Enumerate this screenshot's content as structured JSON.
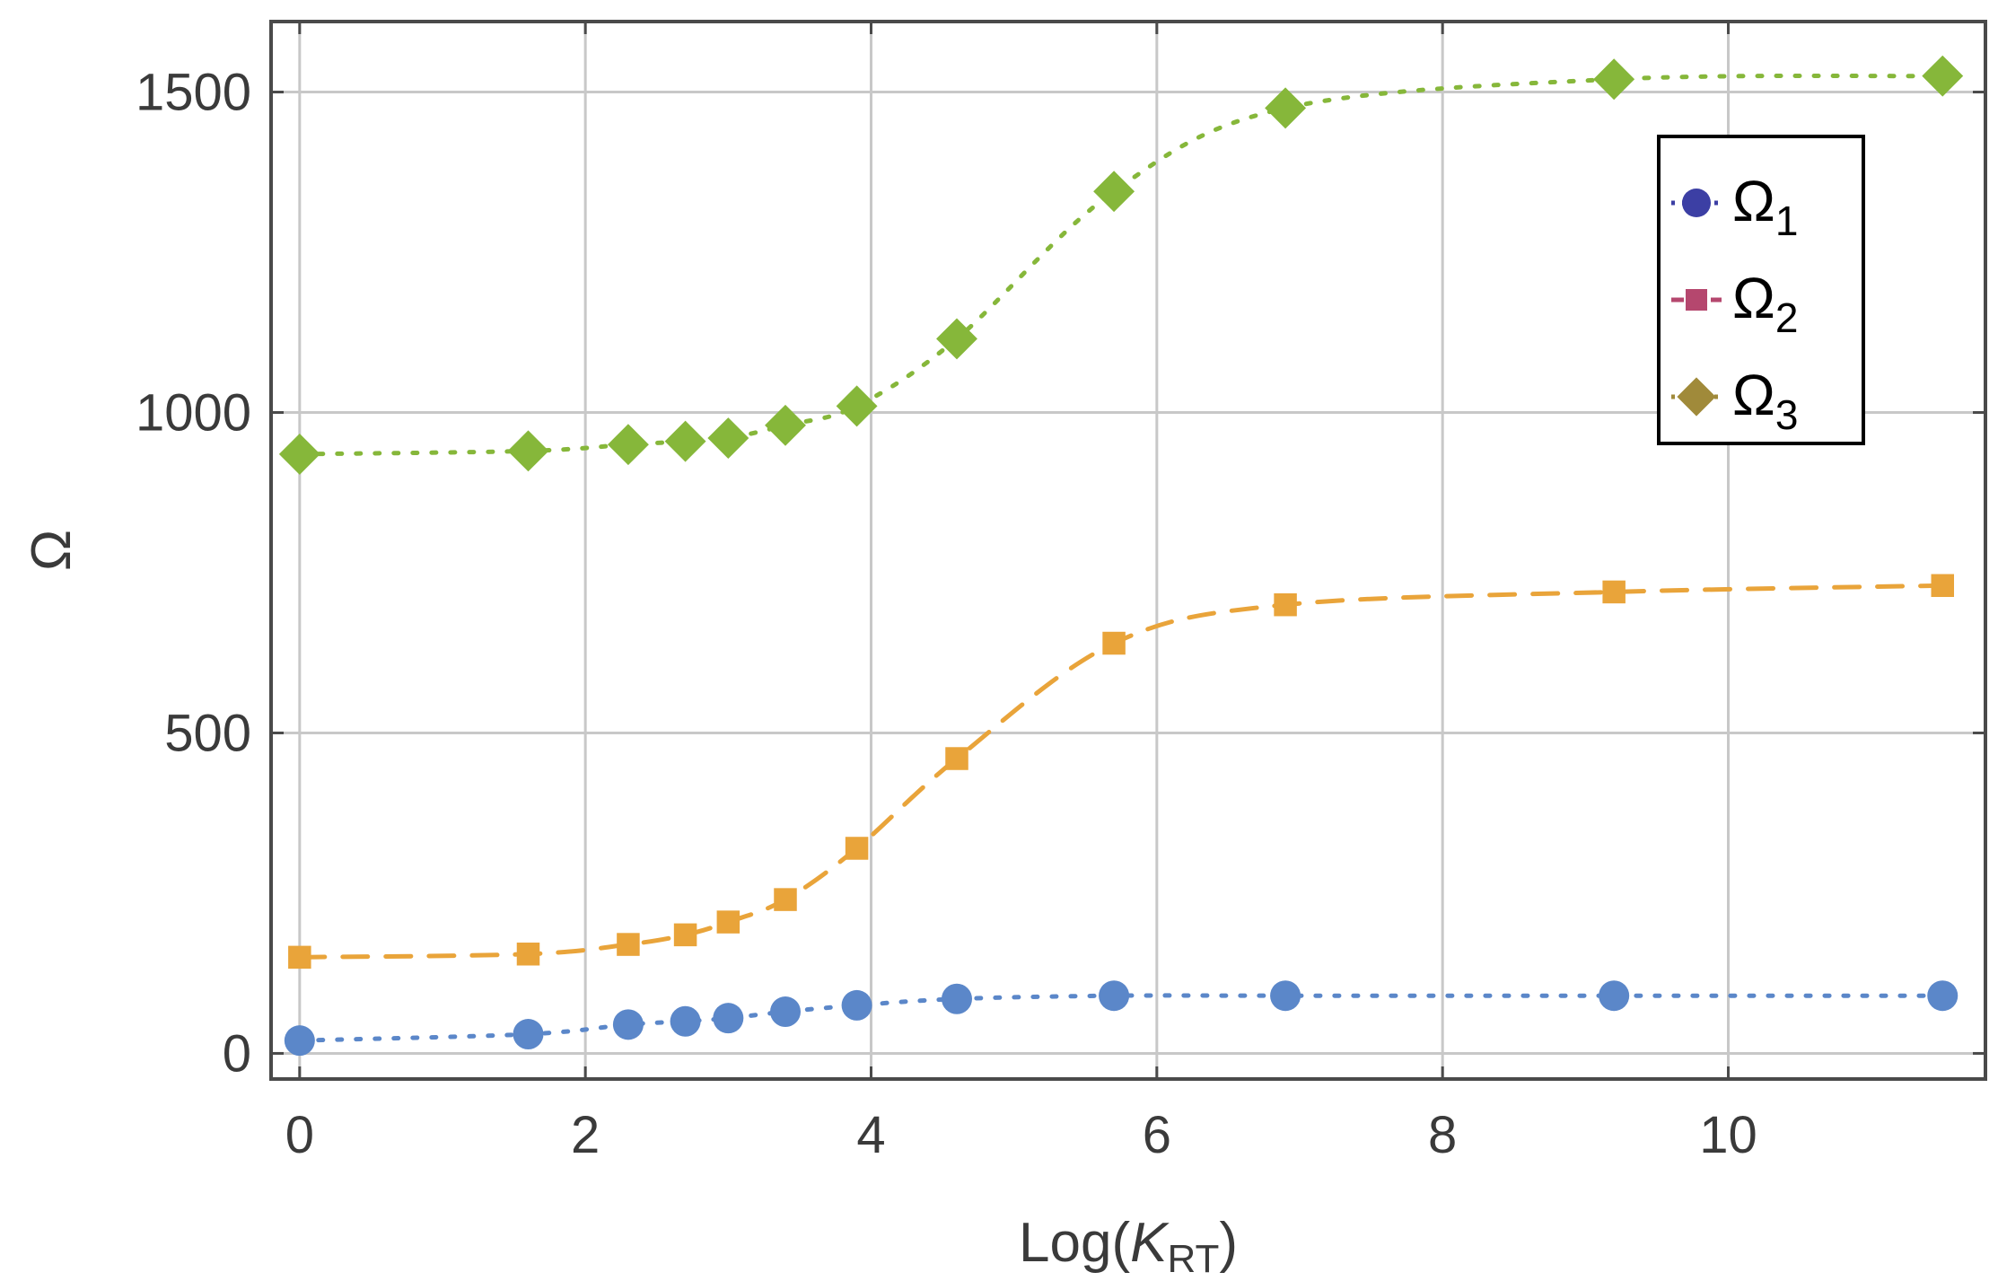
{
  "chart_data": {
    "type": "line",
    "xlabel": {
      "main": "Log(",
      "italic": "K",
      "sub": "RT",
      "close": ")"
    },
    "ylabel": "Ω",
    "xlim": [
      -0.2,
      11.8
    ],
    "ylim": [
      -40,
      1610
    ],
    "xticks": [
      0,
      2,
      4,
      6,
      8,
      10
    ],
    "yticks": [
      0,
      500,
      1000,
      1500
    ],
    "x_tick_labels": [
      "0",
      "2",
      "4",
      "6",
      "8",
      "10"
    ],
    "y_tick_labels": [
      "0",
      "500",
      "1000",
      "1500"
    ],
    "grid": true,
    "legend_position": "top-right",
    "series": [
      {
        "name": "Ω",
        "subscript": "1",
        "marker": "circle",
        "line": "dotted",
        "color": "#5b87c9",
        "legend_color": "#3c3fa4",
        "x": [
          0,
          1.6,
          2.3,
          2.7,
          3.0,
          3.4,
          3.9,
          4.6,
          5.7,
          6.9,
          9.2,
          11.5
        ],
        "values": [
          20,
          30,
          45,
          50,
          55,
          65,
          75,
          85,
          90,
          90,
          90,
          90
        ]
      },
      {
        "name": "Ω",
        "subscript": "2",
        "marker": "square",
        "line": "dashed",
        "color": "#e9a43a",
        "legend_color": "#b5476e",
        "x": [
          0,
          1.6,
          2.3,
          2.7,
          3.0,
          3.4,
          3.9,
          4.6,
          5.7,
          6.9,
          9.2,
          11.5
        ],
        "values": [
          150,
          155,
          170,
          185,
          205,
          240,
          320,
          460,
          640,
          700,
          720,
          730
        ]
      },
      {
        "name": "Ω",
        "subscript": "3",
        "marker": "diamond",
        "line": "dotted",
        "color": "#86b73a",
        "legend_color": "#a08a3a",
        "x": [
          0,
          1.6,
          2.3,
          2.7,
          3.0,
          3.4,
          3.9,
          4.6,
          5.7,
          6.9,
          9.2,
          11.5
        ],
        "values": [
          935,
          940,
          950,
          955,
          960,
          980,
          1010,
          1115,
          1345,
          1475,
          1520,
          1525
        ]
      }
    ]
  }
}
